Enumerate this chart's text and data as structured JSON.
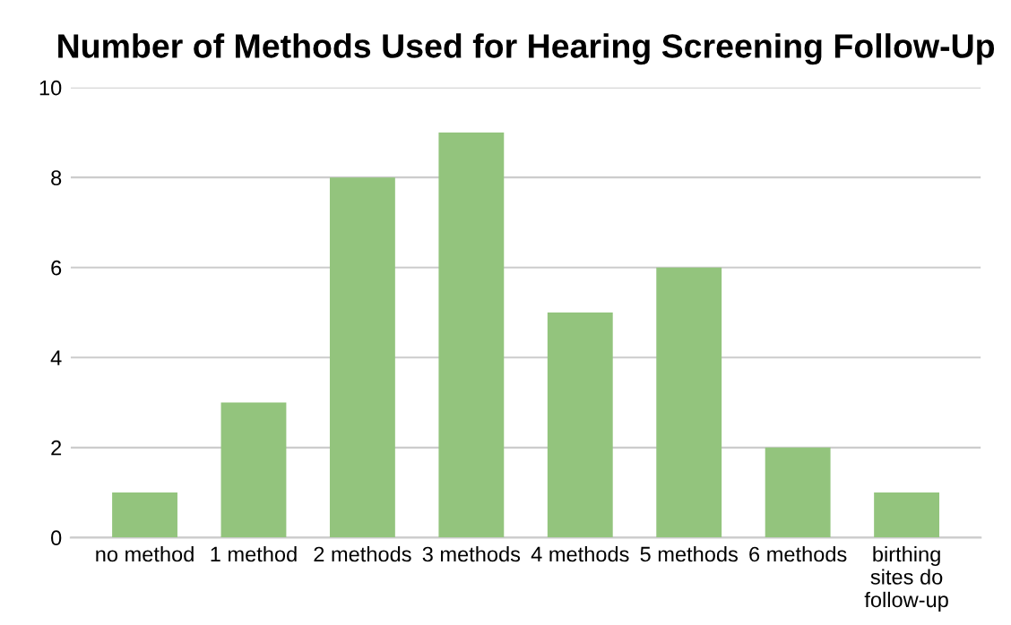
{
  "chart_data": {
    "type": "bar",
    "title": "Number of Methods Used for Hearing Screening Follow-Up",
    "categories": [
      "no method",
      "1 method",
      "2 methods",
      "3 methods",
      "4 methods",
      "5 methods",
      "6 methods",
      "birthing sites do follow-up"
    ],
    "values": [
      1,
      3,
      8,
      9,
      5,
      6,
      2,
      1
    ],
    "color": "#93c47d",
    "ylim": [
      0,
      10
    ],
    "yticks": [
      0,
      2,
      4,
      6,
      8,
      10
    ],
    "grid": "y",
    "legend": false
  }
}
